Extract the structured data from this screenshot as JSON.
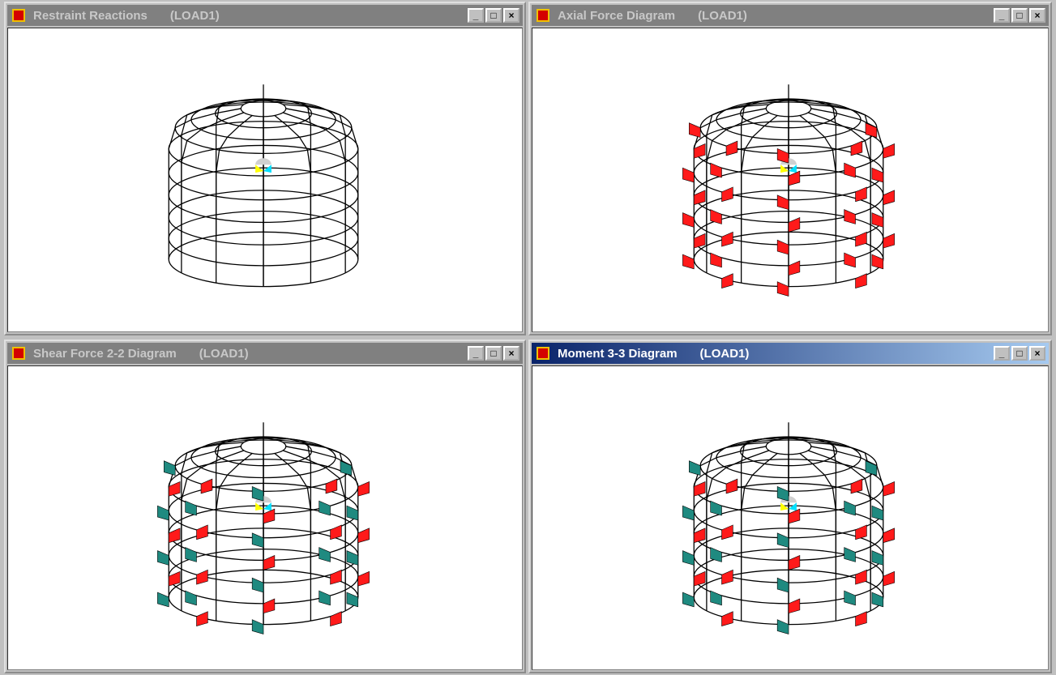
{
  "windows": [
    {
      "title": "Restraint Reactions",
      "load": "(LOAD1)"
    },
    {
      "title": "Axial Force Diagram",
      "load": "(LOAD1)"
    },
    {
      "title": "Shear Force 2-2 Diagram",
      "load": "(LOAD1)"
    },
    {
      "title": "Moment 3-3 Diagram",
      "load": "(LOAD1)"
    }
  ]
}
